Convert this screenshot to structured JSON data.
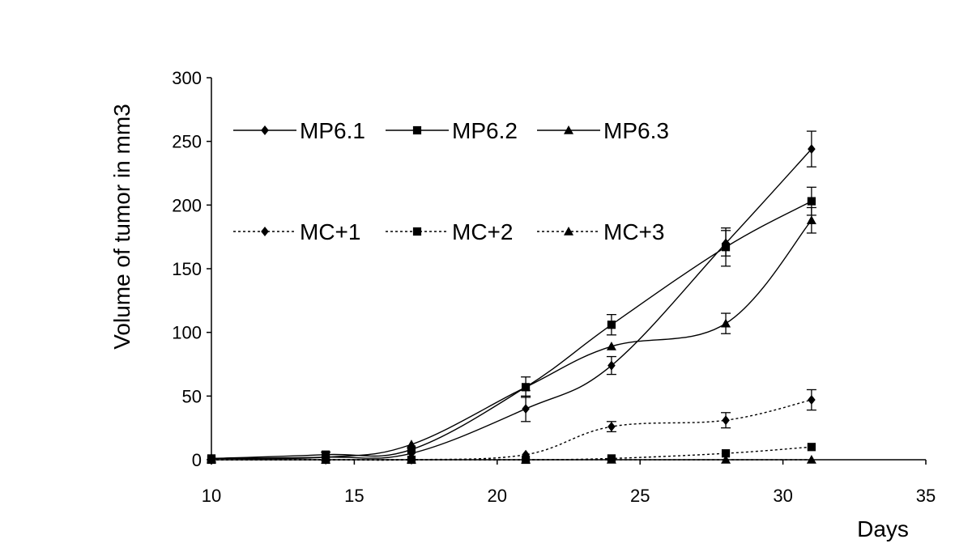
{
  "chart_data": {
    "type": "line",
    "title": "",
    "xlabel": "Days",
    "ylabel": "Volume of tumor in mm3",
    "xlim": [
      10,
      35
    ],
    "ylim": [
      0,
      300
    ],
    "x_ticks": [
      "10",
      "15",
      "20",
      "25",
      "30",
      "35"
    ],
    "y_ticks": [
      "0",
      "50",
      "100",
      "150",
      "200",
      "250",
      "300"
    ],
    "grid": false,
    "legend": "top-left",
    "series": [
      {
        "name": "MP6.1",
        "style": "solid",
        "marker": "diamond",
        "x": [
          10,
          14,
          17,
          21,
          24,
          28,
          31
        ],
        "y": [
          1,
          2,
          5,
          40,
          74,
          170,
          244
        ],
        "err": [
          0,
          0,
          0,
          10,
          7,
          10,
          14
        ]
      },
      {
        "name": "MP6.2",
        "style": "solid",
        "marker": "square",
        "x": [
          10,
          14,
          17,
          21,
          24,
          28,
          31
        ],
        "y": [
          1,
          4,
          8,
          57,
          106,
          167,
          203
        ],
        "err": [
          0,
          2,
          0,
          8,
          8,
          15,
          11
        ]
      },
      {
        "name": "MP6.3",
        "style": "solid",
        "marker": "triangle",
        "x": [
          10,
          14,
          17,
          21,
          24,
          28,
          31
        ],
        "y": [
          1,
          2,
          12,
          57,
          89,
          107,
          188
        ],
        "err": [
          0,
          0,
          0,
          0,
          0,
          8,
          10
        ]
      },
      {
        "name": "MC+1",
        "style": "dotted",
        "marker": "diamond",
        "x": [
          10,
          14,
          17,
          21,
          24,
          28,
          31
        ],
        "y": [
          0,
          0,
          0,
          4,
          26,
          31,
          47
        ],
        "err": [
          0,
          0,
          0,
          0,
          4,
          6,
          8
        ]
      },
      {
        "name": "MC+2",
        "style": "dotted",
        "marker": "square",
        "x": [
          10,
          14,
          17,
          21,
          24,
          28,
          31
        ],
        "y": [
          0,
          0,
          0,
          0,
          1,
          5,
          10
        ],
        "err": [
          0,
          0,
          0,
          0,
          0,
          0,
          0
        ]
      },
      {
        "name": "MC+3",
        "style": "dotted",
        "marker": "triangle",
        "x": [
          10,
          14,
          17,
          21,
          24,
          28,
          31
        ],
        "y": [
          0,
          0,
          0,
          0,
          0,
          0,
          0
        ],
        "err": [
          0,
          0,
          0,
          0,
          0,
          0,
          0
        ]
      }
    ]
  }
}
